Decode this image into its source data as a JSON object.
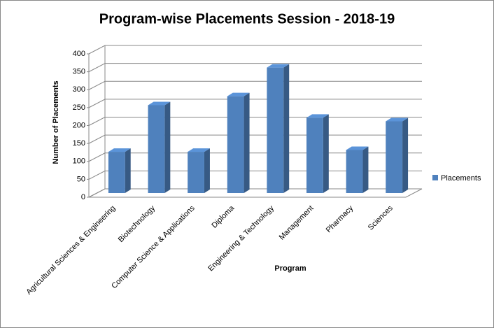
{
  "chart_data": {
    "type": "bar3d",
    "title": "Program-wise Placements Session - 2018-19",
    "x_label": "Program",
    "y_label": "Number of Placements",
    "categories": [
      "Agricultural Sciences & Engineering",
      "Biotechnology",
      "Computer Science & Applications",
      "Diploma",
      "Engineering & Technology",
      "Management",
      "Pharmacy",
      "Sciences"
    ],
    "series": [
      {
        "name": "Placements",
        "color": "#4f81bd",
        "values": [
          115,
          245,
          115,
          270,
          350,
          210,
          120,
          200
        ]
      }
    ],
    "ylim": [
      0,
      400
    ],
    "yticks": [
      0,
      50,
      100,
      150,
      200,
      250,
      300,
      350,
      400
    ],
    "grid": true,
    "legend": "right"
  }
}
